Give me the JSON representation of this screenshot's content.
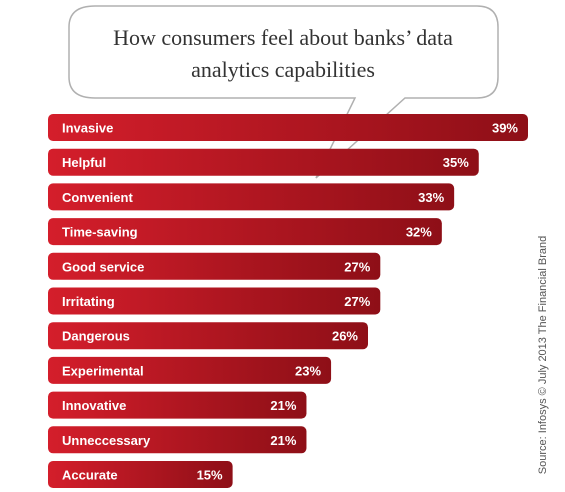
{
  "chart_data": {
    "type": "bar",
    "orientation": "horizontal",
    "title_lines": [
      "How consumers feel about banks’ data",
      "analytics capabilities"
    ],
    "categories": [
      "Invasive",
      "Helpful",
      "Convenient",
      "Time-saving",
      "Good service",
      "Irritating",
      "Dangerous",
      "Experimental",
      "Innovative",
      "Unneccessary",
      "Accurate"
    ],
    "values": [
      39,
      35,
      33,
      32,
      27,
      27,
      26,
      23,
      21,
      21,
      15
    ],
    "value_labels": [
      "39%",
      "35%",
      "33%",
      "32%",
      "27%",
      "27%",
      "26%",
      "23%",
      "21%",
      "21%",
      "15%"
    ],
    "source": "Source: Infosys © July 2013 The Financial Brand",
    "grid": false,
    "legend": "none"
  },
  "colors": {
    "bar_light": "#d41e2b",
    "bar_dark": "#8e0f17",
    "bubble_stroke": "#b0b0b0",
    "bubble_fill": "#ffffff",
    "text_dark": "#333333"
  }
}
